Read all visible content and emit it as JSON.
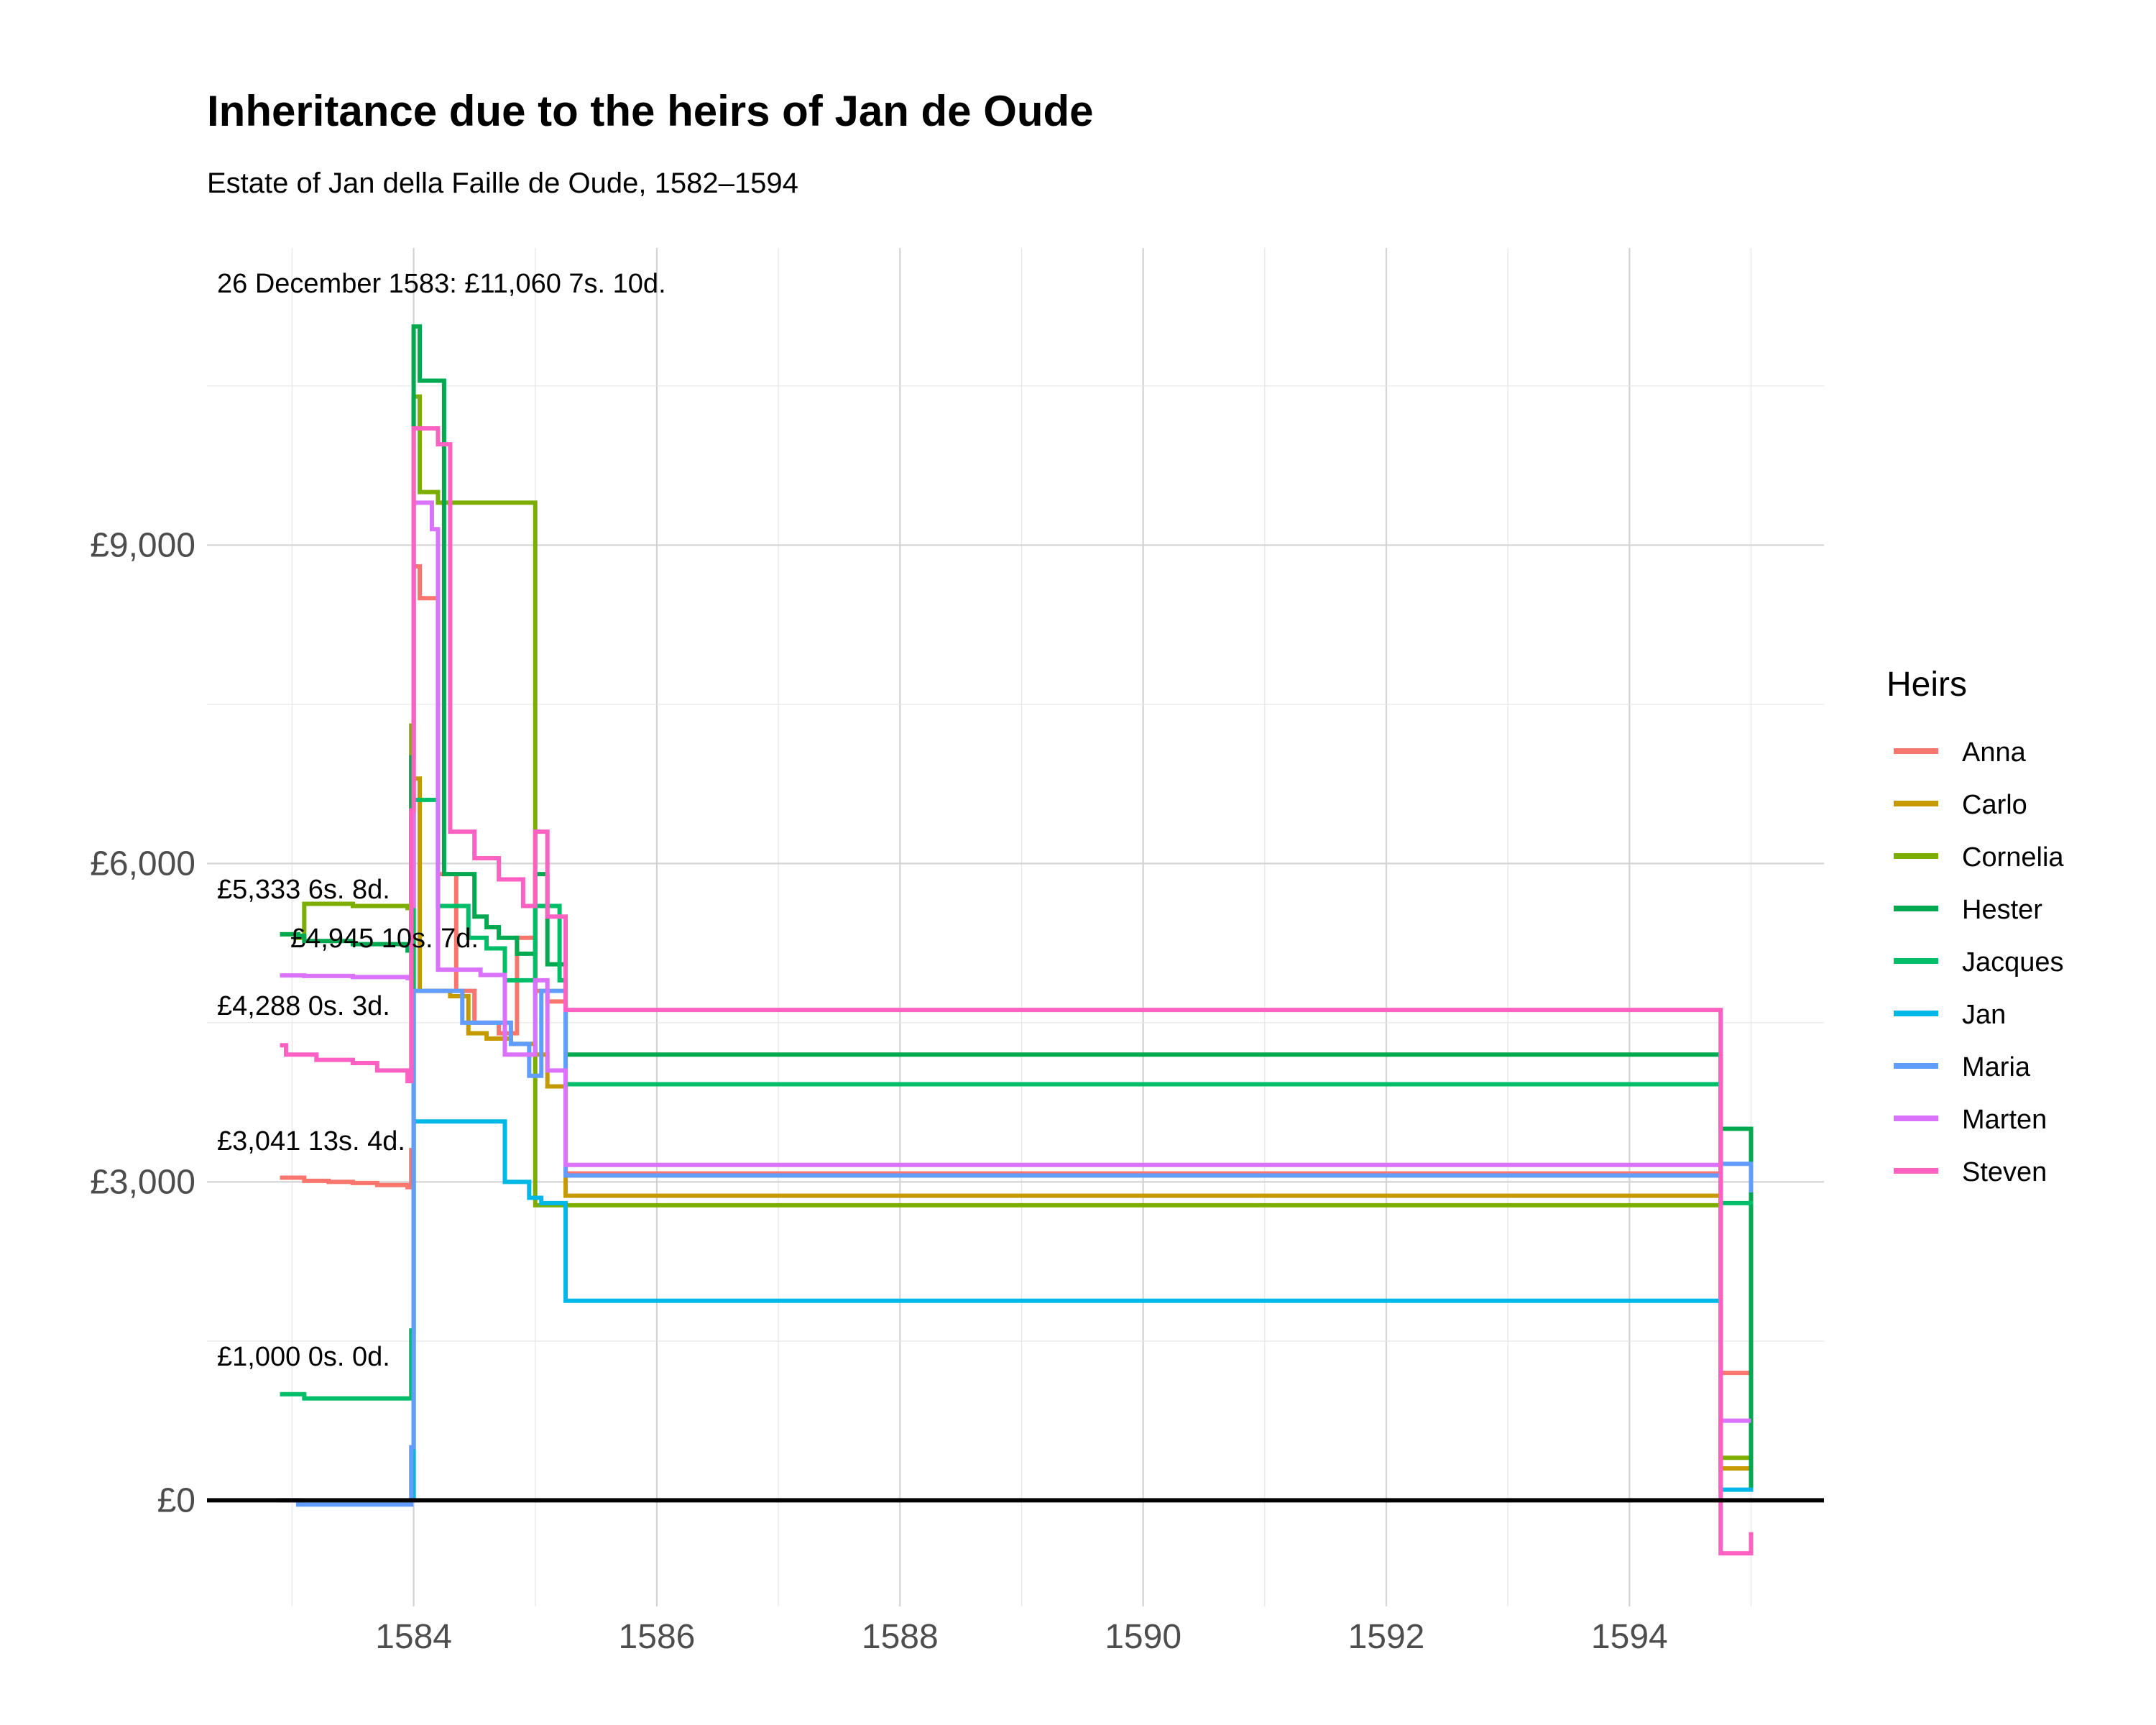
{
  "chart_data": {
    "type": "line",
    "title": "Inheritance due to the heirs of Jan de Oude",
    "subtitle": "Estate of Jan della Faille de Oude, 1582–1594",
    "xlabel": "",
    "ylabel": "",
    "xlim": [
      1582.3,
      1595.6
    ],
    "ylim": [
      -1000,
      11800
    ],
    "x_ticks": [
      1584,
      1586,
      1588,
      1590,
      1592,
      1594
    ],
    "x_tick_labels": [
      "1584",
      "1586",
      "1588",
      "1590",
      "1592",
      "1594"
    ],
    "y_ticks": [
      0,
      3000,
      6000,
      9000
    ],
    "y_tick_labels": [
      "£0",
      "£3,000",
      "£6,000",
      "£9,000"
    ],
    "grid": true,
    "legend": {
      "title": "Heirs",
      "position": "right"
    },
    "annotations": [
      {
        "text": "26 December 1583: £11,060 7s. 10d.",
        "x": 1582.9,
        "y": 11060
      },
      {
        "text": "£5,333 6s. 8d.",
        "x": 1582.9,
        "y": 5333
      },
      {
        "text": "£4,945 10s. 7d.",
        "x": 1582.9,
        "y": 4945
      },
      {
        "text": "£4,288 0s. 3d.",
        "x": 1582.9,
        "y": 4288
      },
      {
        "text": "£3,041 13s. 4d.",
        "x": 1582.9,
        "y": 3041
      },
      {
        "text": "£1,000 0s. 0d.",
        "x": 1582.9,
        "y": 1000
      }
    ],
    "series": [
      {
        "name": "Anna",
        "color": "#F8766D",
        "x": [
          1582.9,
          1583.1,
          1583.3,
          1583.5,
          1583.7,
          1583.95,
          1583.98,
          1584.0,
          1584.05,
          1584.2,
          1584.35,
          1584.5,
          1584.7,
          1584.85,
          1585.0,
          1585.1,
          1585.25,
          1594.7,
          1594.75,
          1595.0
        ],
        "y": [
          3040,
          3010,
          3000,
          2990,
          2970,
          2950,
          3300,
          8800,
          8500,
          5900,
          4800,
          4500,
          4400,
          5300,
          4800,
          4700,
          3080,
          3080,
          1200,
          300
        ]
      },
      {
        "name": "Carlo",
        "color": "#C49A00",
        "x": [
          1583.98,
          1584.0,
          1584.05,
          1584.3,
          1584.45,
          1584.6,
          1584.8,
          1585.0,
          1585.1,
          1585.25,
          1594.7,
          1594.75,
          1595.0
        ],
        "y": [
          0,
          6800,
          4800,
          4750,
          4400,
          4350,
          4300,
          4200,
          3900,
          2870,
          2870,
          300,
          320
        ]
      },
      {
        "name": "Cornelia",
        "color": "#7CAE00",
        "x": [
          1582.9,
          1583.05,
          1583.1,
          1583.5,
          1583.95,
          1583.98,
          1584.0,
          1584.05,
          1584.2,
          1584.95,
          1585.0,
          1594.7,
          1594.75,
          1595.0
        ],
        "y": [
          5333,
          5300,
          5620,
          5600,
          5580,
          7300,
          10400,
          9500,
          9400,
          9400,
          2780,
          2780,
          400,
          420
        ]
      },
      {
        "name": "Hester",
        "color": "#00A9FF_placeholder",
        "x": [],
        "y": []
      },
      {
        "name": "Jacques",
        "color": "#00BE67",
        "x": [
          1582.9,
          1583.1,
          1583.5,
          1583.95,
          1583.98,
          1584.0,
          1584.2,
          1584.45,
          1584.6,
          1584.75,
          1585.0,
          1585.2,
          1585.25,
          1594.7,
          1594.75,
          1595.0
        ],
        "y": [
          1000,
          960,
          960,
          960,
          1600,
          6600,
          5600,
          5300,
          5200,
          4900,
          5600,
          4900,
          3920,
          3920,
          2800,
          2790
        ]
      },
      {
        "name": "Jan",
        "color": "#00B8E7",
        "x": [
          1583.98,
          1584.0,
          1584.6,
          1584.75,
          1584.95,
          1585.05,
          1585.25,
          1594.7,
          1594.75,
          1595.0
        ],
        "y": [
          0,
          3570,
          3570,
          3000,
          2850,
          2800,
          1880,
          1880,
          100,
          120
        ]
      },
      {
        "name": "Maria",
        "color": "#619CFF",
        "x": [
          1582.9,
          1583.05,
          1583.95,
          1583.98,
          1584.0,
          1584.4,
          1584.55,
          1584.8,
          1584.95,
          1585.05,
          1585.25,
          1594.7,
          1594.75,
          1594.95,
          1595.0
        ],
        "y": [
          0,
          -40,
          -40,
          500,
          4800,
          4500,
          4500,
          4300,
          4000,
          4800,
          3060,
          3060,
          3170,
          3170,
          2900
        ]
      },
      {
        "name": "Marten",
        "color": "#DB72FB",
        "x": [
          1582.9,
          1583.1,
          1583.5,
          1583.95,
          1583.98,
          1584.0,
          1584.15,
          1584.2,
          1584.55,
          1584.75,
          1585.0,
          1585.1,
          1585.25,
          1594.7,
          1594.75,
          1595.0
        ],
        "y": [
          4945,
          4940,
          4930,
          4920,
          5600,
          9400,
          9150,
          5000,
          4950,
          4200,
          4900,
          4050,
          3160,
          3160,
          750,
          750
        ]
      },
      {
        "name": "Steven",
        "color": "#FF61C3",
        "x": [
          1582.9,
          1582.95,
          1583.2,
          1583.5,
          1583.7,
          1583.95,
          1583.98,
          1584.0,
          1584.2,
          1584.3,
          1584.5,
          1584.7,
          1584.9,
          1585.0,
          1585.1,
          1585.25,
          1594.7,
          1594.75,
          1595.0
        ],
        "y": [
          4288,
          4200,
          4150,
          4120,
          4050,
          3950,
          6500,
          10100,
          9950,
          6300,
          6050,
          5850,
          5600,
          6300,
          5500,
          4620,
          4620,
          -500,
          -300
        ]
      }
    ]
  }
}
